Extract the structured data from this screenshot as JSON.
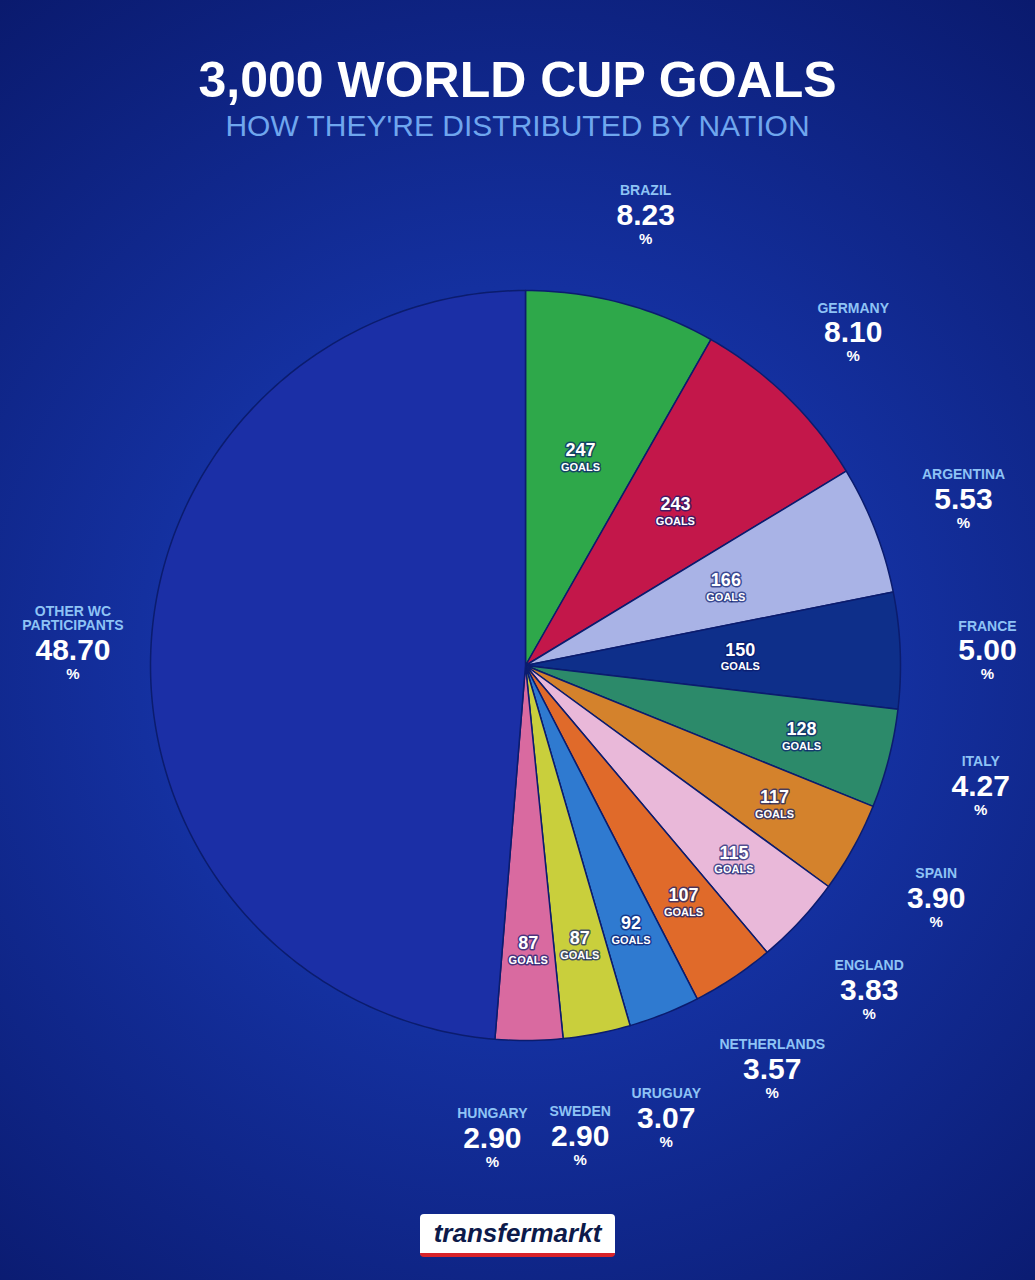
{
  "chart_data": {
    "type": "pie",
    "title": "3,000 WORLD CUP GOALS",
    "subtitle": "HOW THEY'RE DISTRIBUTED BY NATION",
    "categories": [
      "BRAZIL",
      "GERMANY",
      "ARGENTINA",
      "FRANCE",
      "ITALY",
      "SPAIN",
      "ENGLAND",
      "NETHERLANDS",
      "URUGUAY",
      "SWEDEN",
      "HUNGARY",
      "OTHER WC PARTICIPANTS"
    ],
    "values": [
      8.23,
      8.1,
      5.53,
      5.0,
      4.27,
      3.9,
      3.83,
      3.57,
      3.07,
      2.9,
      2.9,
      48.7
    ],
    "value_labels": [
      "8.23",
      "8.10",
      "5.53",
      "5.00",
      "4.27",
      "3.90",
      "3.83",
      "3.57",
      "3.07",
      "2.90",
      "2.90",
      "48.70"
    ],
    "value_unit": "%",
    "goals": [
      247,
      243,
      166,
      150,
      128,
      117,
      115,
      107,
      92,
      87,
      87,
      null
    ],
    "goals_label": "GOALS",
    "colors": [
      "#2ea84a",
      "#c3174a",
      "#a9b3e6",
      "#0e2f8a",
      "#2c8a6a",
      "#d4822c",
      "#e9b8d9",
      "#e06a2a",
      "#2f7ad0",
      "#c9cf3c",
      "#d96aa0",
      "#1b2fa6"
    ],
    "data_labels": true,
    "source": "transfermarkt"
  }
}
